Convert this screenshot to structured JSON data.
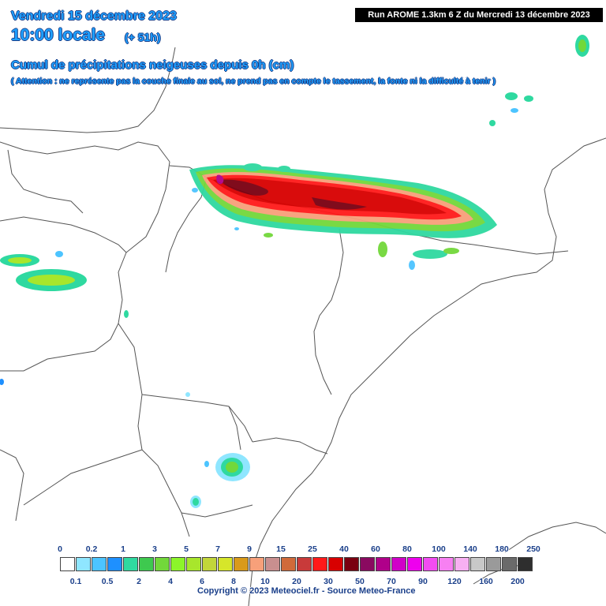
{
  "header": {
    "date": "Vendredi 15 décembre 2023",
    "time": "10:00 locale",
    "lead": "(+ 51h)",
    "title": "Cumul de précipitations neigeuses depuis 0h (cm)",
    "note": "( Attention : ne représente pas la couche finale au sol, ne prend pas en compte le tassement, la fonte ni la difficulté à tenir )",
    "run": "Run AROME 1.3km 6 Z du Mercredi 13 décembre 2023"
  },
  "legend": {
    "top_labels": [
      "0",
      "0.2",
      "1",
      "3",
      "5",
      "7",
      "9",
      "15",
      "25",
      "40",
      "60",
      "80",
      "100",
      "140",
      "180",
      "250"
    ],
    "bottom_labels": [
      "0.1",
      "0.5",
      "2",
      "4",
      "6",
      "8",
      "10",
      "20",
      "30",
      "50",
      "70",
      "90",
      "120",
      "160",
      "200"
    ],
    "colors": [
      "#ffffff",
      "#8fe6ff",
      "#4cc4ff",
      "#1e90ff",
      "#2fd9a0",
      "#3ec94f",
      "#72d83a",
      "#8cf52a",
      "#a8e62c",
      "#c2d63a",
      "#d6e62a",
      "#d99a1a",
      "#f7a07a",
      "#c98f8f",
      "#d06a3a",
      "#c83a3a",
      "#ff1a1a",
      "#d80000",
      "#7a0010",
      "#8a0a60",
      "#b0008a",
      "#d000c8",
      "#ee00ee",
      "#f24cf2",
      "#f780f2",
      "#f7b0f2",
      "#c8c8c8",
      "#9a9a9a",
      "#6a6a6a",
      "#2e2e2e"
    ]
  },
  "copyright": "Copyright © 2023 Meteociel.fr - Source Meteo-France"
}
